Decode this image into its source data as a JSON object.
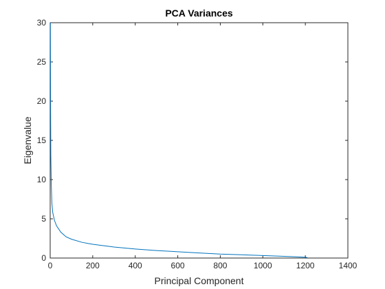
{
  "chart_data": {
    "type": "line",
    "title": "PCA Variances",
    "xlabel": "Principal Component",
    "ylabel": "Eigenvalue",
    "xlim": [
      0,
      1400
    ],
    "ylim": [
      0,
      30
    ],
    "xticks": [
      0,
      200,
      400,
      600,
      800,
      1000,
      1200,
      1400
    ],
    "yticks": [
      0,
      5,
      10,
      15,
      20,
      25,
      30
    ],
    "grid": false,
    "series": [
      {
        "color": "#0072BD",
        "x": [
          1,
          2,
          3,
          5,
          8,
          12,
          20,
          30,
          50,
          75,
          100,
          150,
          200,
          300,
          400,
          500,
          600,
          700,
          800,
          900,
          1000,
          1100,
          1150,
          1200,
          1210
        ],
        "y": [
          30,
          19,
          13,
          9.5,
          7,
          5.8,
          4.8,
          4.1,
          3.3,
          2.7,
          2.4,
          2.0,
          1.75,
          1.4,
          1.15,
          0.95,
          0.8,
          0.65,
          0.5,
          0.42,
          0.32,
          0.22,
          0.16,
          0.1,
          0.05
        ]
      }
    ]
  }
}
